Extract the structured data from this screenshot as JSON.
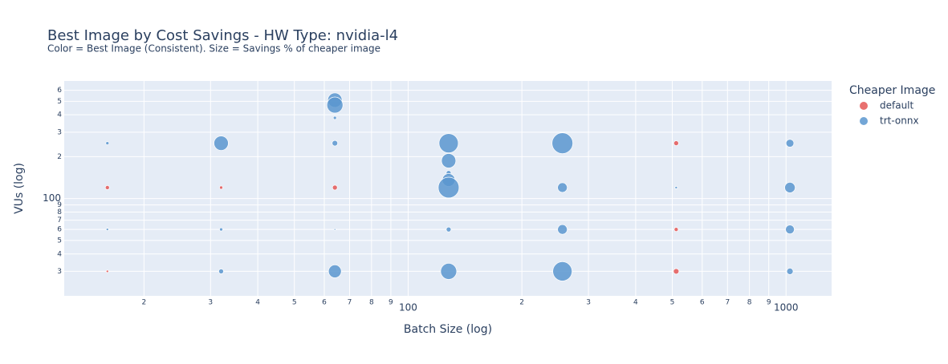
{
  "chart_data": {
    "type": "scatter",
    "title": "Best Image by Cost Savings - HW Type: nvidia-l4",
    "subtitle": "Color = Best Image (Consistent). Size = Savings % of cheaper image",
    "x_label": "Batch Size (log)",
    "y_label": "VUs (log)",
    "legend_title": "Cheaper Image",
    "legend_position": "right",
    "x_log": true,
    "y_log": true,
    "grid": true,
    "xlim": [
      12.3,
      1320
    ],
    "ylim": [
      20,
      700
    ],
    "xticks": [
      {
        "value": 20,
        "label": "2"
      },
      {
        "value": 30,
        "label": "3"
      },
      {
        "value": 40,
        "label": "4"
      },
      {
        "value": 50,
        "label": "5"
      },
      {
        "value": 60,
        "label": "6"
      },
      {
        "value": 70,
        "label": "7"
      },
      {
        "value": 80,
        "label": "8"
      },
      {
        "value": 90,
        "label": "9"
      },
      100,
      {
        "value": 200,
        "label": "2"
      },
      {
        "value": 300,
        "label": "3"
      },
      {
        "value": 400,
        "label": "4"
      },
      {
        "value": 500,
        "label": "5"
      },
      {
        "value": 600,
        "label": "6"
      },
      {
        "value": 700,
        "label": "7"
      },
      {
        "value": 800,
        "label": "8"
      },
      {
        "value": 900,
        "label": "9"
      },
      1000
    ],
    "yticks": [
      {
        "value": 30,
        "label": "3"
      },
      {
        "value": 40,
        "label": "4"
      },
      {
        "value": 50,
        "label": "5"
      },
      {
        "value": 60,
        "label": "6"
      },
      {
        "value": 70,
        "label": "7"
      },
      {
        "value": 80,
        "label": "8"
      },
      {
        "value": 90,
        "label": "9"
      },
      100,
      {
        "value": 200,
        "label": "2"
      },
      {
        "value": 300,
        "label": "3"
      },
      {
        "value": 400,
        "label": "4"
      },
      {
        "value": 500,
        "label": "5"
      },
      {
        "value": 600,
        "label": "6"
      }
    ],
    "series": [
      {
        "name": "default",
        "color": "#e45756",
        "x": [
          16,
          16,
          32,
          64,
          512,
          512,
          512
        ],
        "y": [
          120,
          30,
          120,
          120,
          250,
          60,
          30
        ],
        "sizes": [
          1.6,
          0.6,
          1,
          2.3,
          2.3,
          1.6,
          3
        ]
      },
      {
        "name": "trt-onnx",
        "color": "#5b97cf",
        "x": [
          16,
          16,
          32,
          32,
          32,
          64,
          64,
          64,
          64,
          64,
          64,
          128,
          128,
          128,
          128,
          128,
          128,
          128,
          256,
          256,
          256,
          256,
          512,
          1024,
          1024,
          1024,
          1024
        ],
        "y": [
          250,
          60,
          250,
          60,
          30,
          510,
          470,
          380,
          250,
          60,
          30,
          250,
          187,
          153,
          136,
          120,
          60,
          30,
          250,
          120,
          60,
          30,
          120,
          250,
          120,
          60,
          30
        ],
        "sizes": [
          1,
          0.6,
          20,
          1,
          2.3,
          20,
          25,
          1,
          3,
          0.3,
          16,
          36,
          20,
          2.3,
          16,
          42,
          2.3,
          25,
          42,
          9,
          9,
          36,
          0.6,
          6,
          10.6,
          7.6,
          4
        ]
      }
    ]
  }
}
